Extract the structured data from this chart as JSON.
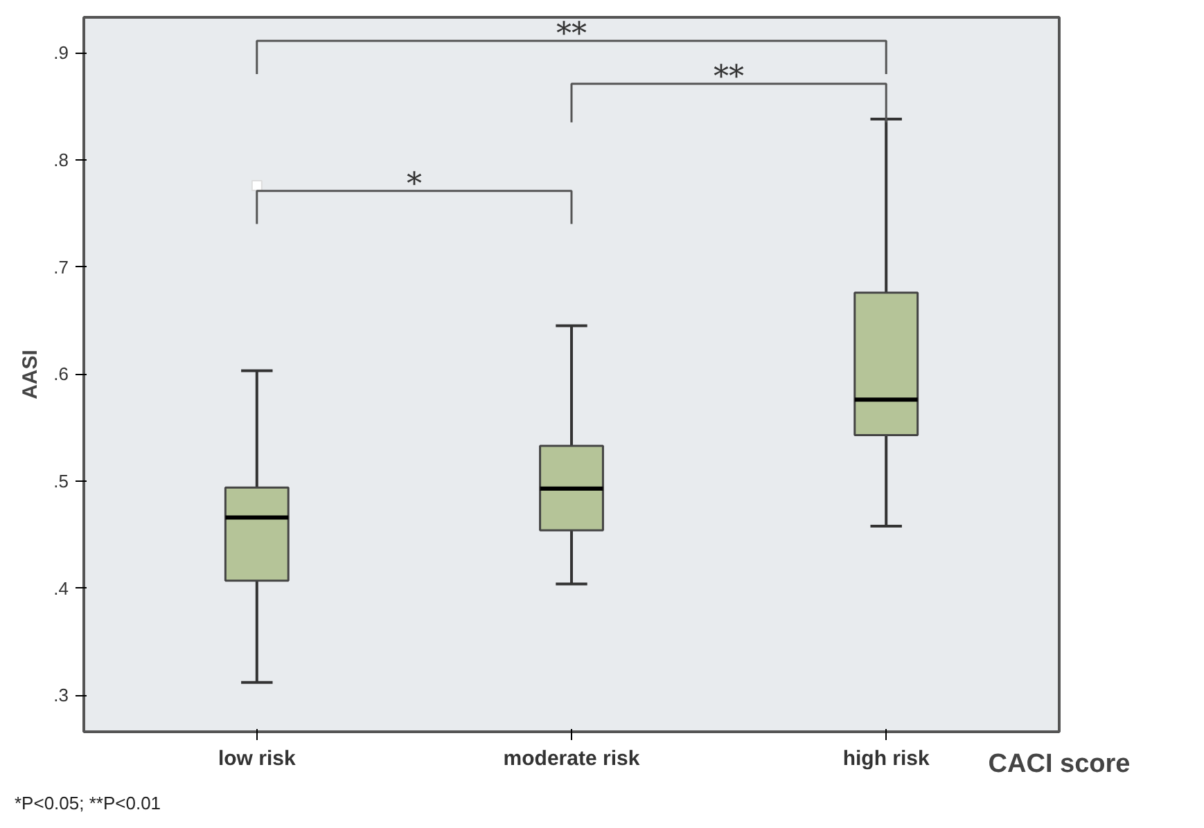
{
  "chart_data": {
    "type": "box",
    "ylabel": "AASI",
    "xlabel": "CACI score",
    "categories": [
      "low risk",
      "moderate risk",
      "high risk"
    ],
    "series": [
      {
        "color": "#b5c498",
        "boxes": [
          {
            "low": 0.312,
            "q1": 0.407,
            "median": 0.466,
            "q3": 0.494,
            "high": 0.603,
            "outliers": [
              0.776
            ]
          },
          {
            "low": 0.404,
            "q1": 0.454,
            "median": 0.493,
            "q3": 0.533,
            "high": 0.645
          },
          {
            "low": 0.458,
            "q1": 0.543,
            "median": 0.576,
            "q3": 0.676,
            "high": 0.838
          }
        ]
      }
    ],
    "ylim": [
      0.266,
      0.933
    ],
    "yticks": [
      {
        "value": 0.3,
        "label": ".3"
      },
      {
        "value": 0.4,
        "label": ".4"
      },
      {
        "value": 0.5,
        "label": ".5"
      },
      {
        "value": 0.6,
        "label": ".6"
      },
      {
        "value": 0.7,
        "label": ".7"
      },
      {
        "value": 0.8,
        "label": ".8"
      },
      {
        "value": 0.9,
        "label": ".9"
      }
    ],
    "grid": false,
    "annotations": [
      "*",
      "**",
      "**",
      "*P<0.05;    **P<0.01"
    ]
  }
}
